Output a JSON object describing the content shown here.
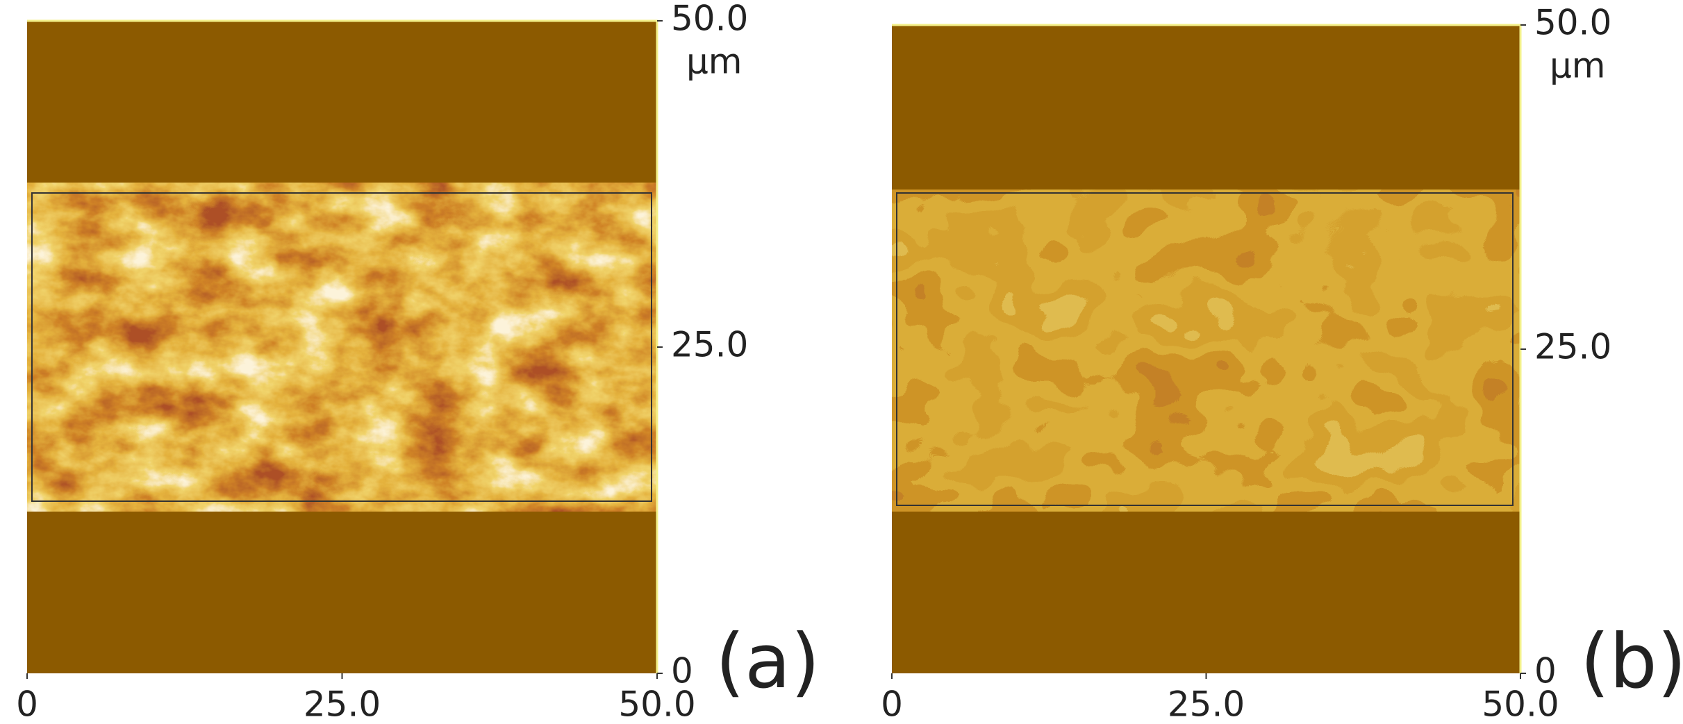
{
  "chart_data": [
    {
      "type": "image",
      "label": "(a)",
      "unit": "µm",
      "xlim": [
        0,
        50
      ],
      "ylim": [
        0,
        50
      ],
      "xticks": [
        0,
        {
          "value": 25,
          "label": "25.0"
        },
        {
          "value": 50,
          "label": "50.0"
        }
      ],
      "yticks": [
        0,
        {
          "value": 25,
          "label": "25.0"
        },
        {
          "value": 50,
          "label": "50.0"
        }
      ]
    },
    {
      "type": "image",
      "label": "(b)",
      "unit": "µm",
      "xlim": [
        0,
        50
      ],
      "ylim": [
        0,
        50
      ],
      "xticks": [
        0,
        {
          "value": 25,
          "label": "25.0"
        },
        {
          "value": 50,
          "label": "50.0"
        }
      ],
      "yticks": [
        0,
        {
          "value": 25,
          "label": "25.0"
        },
        {
          "value": 50,
          "label": "50.0"
        }
      ]
    }
  ]
}
